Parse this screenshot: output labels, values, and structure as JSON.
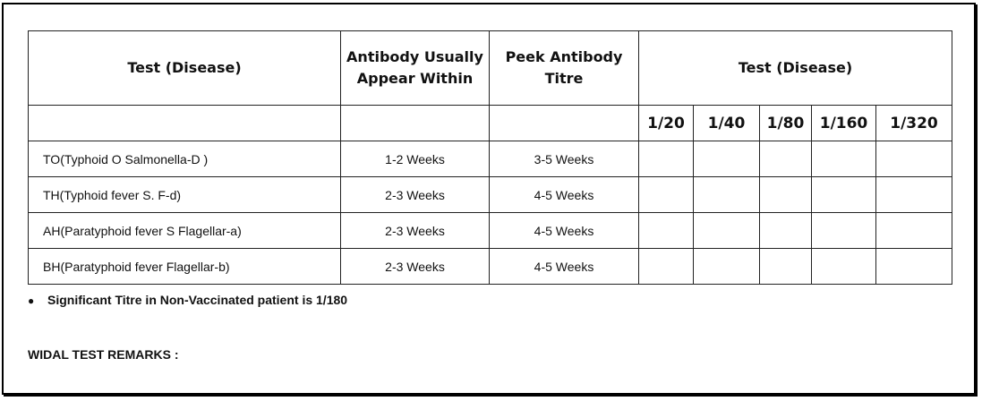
{
  "table": {
    "headers": {
      "test": "Test (Disease)",
      "antibody_appear": "Antibody Usually Appear Within",
      "peak_titre": "Peek Antibody Titre",
      "group": "Test (Disease)"
    },
    "dilutions": [
      "1/20",
      "1/40",
      "1/80",
      "1/160",
      "1/320"
    ],
    "rows": [
      {
        "test": "TO(Typhoid O Salmonella-D )",
        "appear": "1-2 Weeks",
        "peak": "3-5 Weeks"
      },
      {
        "test": "TH(Typhoid fever S. F-d)",
        "appear": "2-3 Weeks",
        "peak": "4-5 Weeks"
      },
      {
        "test": "AH(Paratyphoid fever S Flagellar-a)",
        "appear": "2-3 Weeks",
        "peak": "4-5 Weeks"
      },
      {
        "test": "BH(Paratyphoid fever Flagellar-b)",
        "appear": "2-3 Weeks",
        "peak": "4-5 Weeks"
      }
    ]
  },
  "note": {
    "bullet_icon": "bullet-dot",
    "text": "Significant Titre in Non-Vaccinated patient is 1/180"
  },
  "remarks": {
    "label": "WIDAL TEST REMARKS :"
  }
}
